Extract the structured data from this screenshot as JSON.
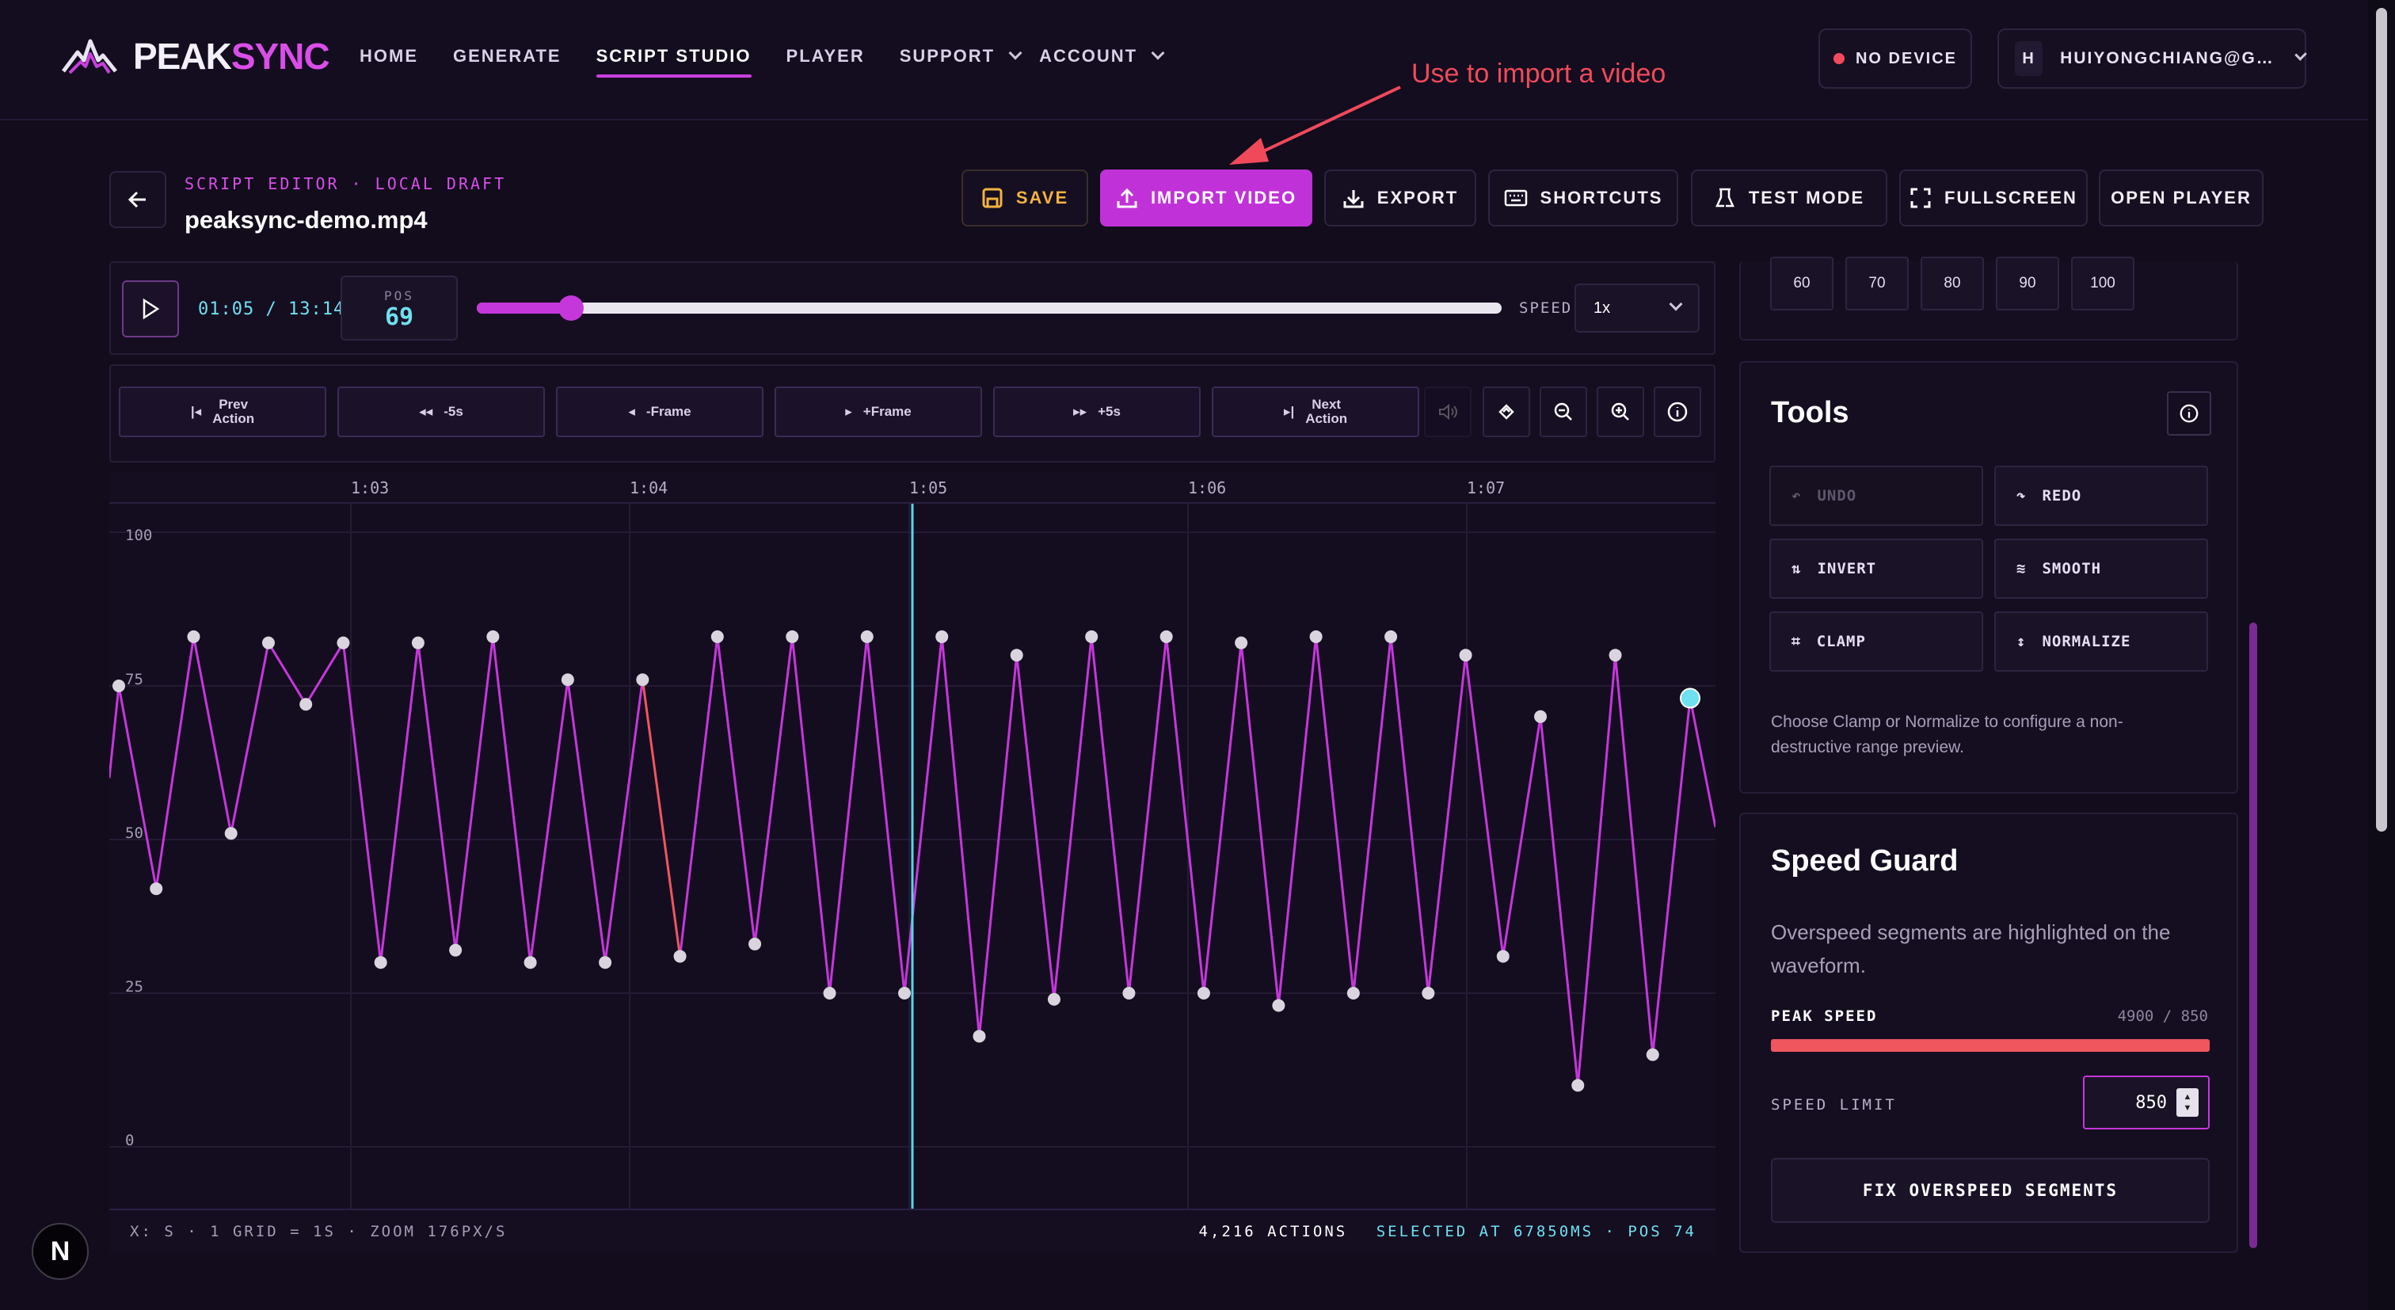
{
  "brand": {
    "peak": "PEAK",
    "sync": "SYNC"
  },
  "nav": {
    "items": [
      {
        "label": "HOME"
      },
      {
        "label": "GENERATE"
      },
      {
        "label": "SCRIPT STUDIO"
      },
      {
        "label": "PLAYER"
      },
      {
        "label": "SUPPORT"
      },
      {
        "label": "ACCOUNT"
      }
    ],
    "device": "NO DEVICE",
    "avatar": "H",
    "account": "HUIYONGCHIANG@G…"
  },
  "annotation": "Use to import a video",
  "editor": {
    "crumb": "SCRIPT EDITOR · LOCAL DRAFT",
    "filename": "peaksync-demo.mp4"
  },
  "toolbar": {
    "save": "SAVE",
    "import": "IMPORT VIDEO",
    "export": "EXPORT",
    "shortcuts": "SHORTCUTS",
    "test": "TEST MODE",
    "fullscreen": "FULLSCREEN",
    "open_player": "OPEN PLAYER"
  },
  "player": {
    "time": "01:05 / 13:14",
    "pos_label": "POS",
    "pos": "69",
    "progress_fraction": 0.092,
    "speed_label": "SPEED",
    "speed": "1x"
  },
  "transport": {
    "prev": "Prev",
    "prev2": "Action",
    "back5": "-5s",
    "backf": "-Frame",
    "fwdf": "+Frame",
    "fwd5": "+5s",
    "next": "Next",
    "next2": "Action"
  },
  "timeline": {
    "ticks": [
      "1:03",
      "1:04",
      "1:05",
      "1:06",
      "1:07"
    ],
    "ylabels": [
      "100",
      "75",
      "50",
      "25",
      "0"
    ]
  },
  "status": {
    "left": "X: S · 1 GRID = 1S · ZOOM 176PX/S",
    "actions": "4,216 ACTIONS",
    "selected": "SELECTED AT 67850MS · POS 74"
  },
  "presets": [
    "60",
    "70",
    "80",
    "90",
    "100"
  ],
  "tools": {
    "title": "Tools",
    "undo": "UNDO",
    "redo": "REDO",
    "invert": "INVERT",
    "smooth": "SMOOTH",
    "clamp": "CLAMP",
    "normalize": "NORMALIZE",
    "desc1": "Choose Clamp or Normalize to configure a non-",
    "desc2": "destructive range preview."
  },
  "guard": {
    "title": "Speed Guard",
    "desc1": "Overspeed segments are highlighted on the",
    "desc2": "waveform.",
    "peak_label": "PEAK SPEED",
    "peak_value": "4900 / 850",
    "limit_label": "SPEED LIMIT",
    "limit": "850",
    "fix": "FIX OVERSPEED SEGMENTS"
  },
  "badge": "N",
  "colors": {
    "accent": "#c537db",
    "cyan": "#6fe0ef",
    "danger": "#f24b5d",
    "warn": "#f3b340"
  },
  "chart_data": {
    "type": "line",
    "ylim": [
      0,
      100
    ],
    "values": [
      75,
      42,
      83,
      51,
      82,
      72,
      82,
      30,
      82,
      32,
      83,
      30,
      76,
      30,
      76,
      31,
      83,
      33,
      83,
      25,
      83,
      25,
      83,
      18,
      80,
      24,
      83,
      25,
      83,
      25,
      82,
      23,
      83,
      25,
      83,
      25,
      80,
      31,
      70,
      10,
      80,
      15,
      73
    ]
  }
}
